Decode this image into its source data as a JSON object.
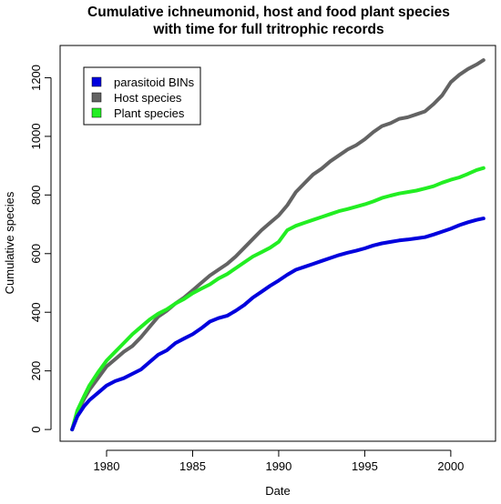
{
  "chart_data": {
    "type": "line",
    "title_lines": [
      "Cumulative ichneumonid, host and food plant species",
      "with time for full tritrophic records"
    ],
    "xlabel": "Date",
    "ylabel": "Cumulative species",
    "xlim": [
      1977.3,
      2002.6
    ],
    "ylim": [
      -40,
      1310
    ],
    "x_ticks": [
      1980,
      1985,
      1990,
      1995,
      2000
    ],
    "x_tick_labels": [
      "1980",
      "1985",
      "1990",
      "1995",
      "2000"
    ],
    "y_ticks": [
      0,
      200,
      400,
      600,
      800,
      1000,
      1200
    ],
    "y_tick_labels": [
      "0",
      "200",
      "400",
      "600",
      "800",
      "1000",
      "1200"
    ],
    "grid": false,
    "legend_position": "top-left",
    "series": [
      {
        "name": "parasitoid BINs",
        "color": "#0000dd",
        "x": [
          1978.0,
          1978.3,
          1978.7,
          1979.0,
          1979.5,
          1980.0,
          1980.5,
          1981.0,
          1981.5,
          1982.0,
          1982.5,
          1983.0,
          1983.5,
          1984.0,
          1984.5,
          1985.0,
          1985.5,
          1986.0,
          1986.5,
          1987.0,
          1987.5,
          1988.0,
          1988.5,
          1989.0,
          1989.5,
          1990.0,
          1990.5,
          1991.0,
          1991.5,
          1992.0,
          1992.5,
          1993.0,
          1993.5,
          1994.0,
          1994.5,
          1995.0,
          1995.5,
          1996.0,
          1996.5,
          1997.0,
          1997.5,
          1998.0,
          1998.5,
          1999.0,
          1999.5,
          2000.0,
          2000.5,
          2001.0,
          2001.5,
          2001.9
        ],
        "y": [
          0,
          45,
          80,
          100,
          125,
          150,
          165,
          175,
          190,
          205,
          230,
          255,
          270,
          295,
          310,
          325,
          345,
          368,
          380,
          388,
          405,
          425,
          450,
          470,
          490,
          508,
          528,
          545,
          555,
          565,
          575,
          585,
          595,
          603,
          610,
          618,
          628,
          635,
          640,
          645,
          648,
          652,
          656,
          665,
          675,
          685,
          697,
          707,
          715,
          720
        ]
      },
      {
        "name": "Host species",
        "color": "#636363",
        "x": [
          1978.0,
          1978.3,
          1978.7,
          1979.0,
          1979.5,
          1980.0,
          1980.5,
          1981.0,
          1981.5,
          1982.0,
          1982.5,
          1983.0,
          1983.5,
          1984.0,
          1984.5,
          1985.0,
          1985.5,
          1986.0,
          1986.5,
          1987.0,
          1987.5,
          1988.0,
          1988.5,
          1989.0,
          1989.5,
          1990.0,
          1990.5,
          1991.0,
          1991.5,
          1992.0,
          1992.5,
          1993.0,
          1993.5,
          1994.0,
          1994.5,
          1995.0,
          1995.5,
          1996.0,
          1996.5,
          1997.0,
          1997.5,
          1998.0,
          1998.5,
          1999.0,
          1999.5,
          2000.0,
          2000.5,
          2001.0,
          2001.5,
          2001.9
        ],
        "y": [
          0,
          60,
          105,
          135,
          175,
          215,
          240,
          265,
          285,
          315,
          350,
          385,
          405,
          430,
          450,
          475,
          500,
          525,
          545,
          565,
          590,
          620,
          650,
          680,
          705,
          730,
          765,
          810,
          840,
          870,
          890,
          915,
          935,
          955,
          970,
          990,
          1015,
          1035,
          1045,
          1060,
          1065,
          1075,
          1085,
          1110,
          1140,
          1185,
          1210,
          1230,
          1245,
          1260
        ]
      },
      {
        "name": "Plant species",
        "color": "#22ee22",
        "x": [
          1978.0,
          1978.3,
          1978.7,
          1979.0,
          1979.5,
          1980.0,
          1980.5,
          1981.0,
          1981.5,
          1982.0,
          1982.5,
          1983.0,
          1983.5,
          1984.0,
          1984.5,
          1985.0,
          1985.5,
          1986.0,
          1986.5,
          1987.0,
          1987.5,
          1988.0,
          1988.5,
          1989.0,
          1989.5,
          1990.0,
          1990.5,
          1991.0,
          1991.5,
          1992.0,
          1992.5,
          1993.0,
          1993.5,
          1994.0,
          1994.5,
          1995.0,
          1995.5,
          1996.0,
          1996.5,
          1997.0,
          1997.5,
          1998.0,
          1998.5,
          1999.0,
          1999.5,
          2000.0,
          2000.5,
          2001.0,
          2001.5,
          2001.9
        ],
        "y": [
          0,
          65,
          115,
          150,
          195,
          235,
          265,
          295,
          325,
          350,
          375,
          395,
          410,
          430,
          445,
          465,
          480,
          495,
          515,
          530,
          550,
          570,
          590,
          605,
          620,
          640,
          680,
          695,
          705,
          715,
          725,
          735,
          745,
          752,
          760,
          768,
          778,
          790,
          798,
          805,
          810,
          815,
          822,
          830,
          842,
          852,
          860,
          872,
          885,
          892
        ]
      }
    ]
  }
}
